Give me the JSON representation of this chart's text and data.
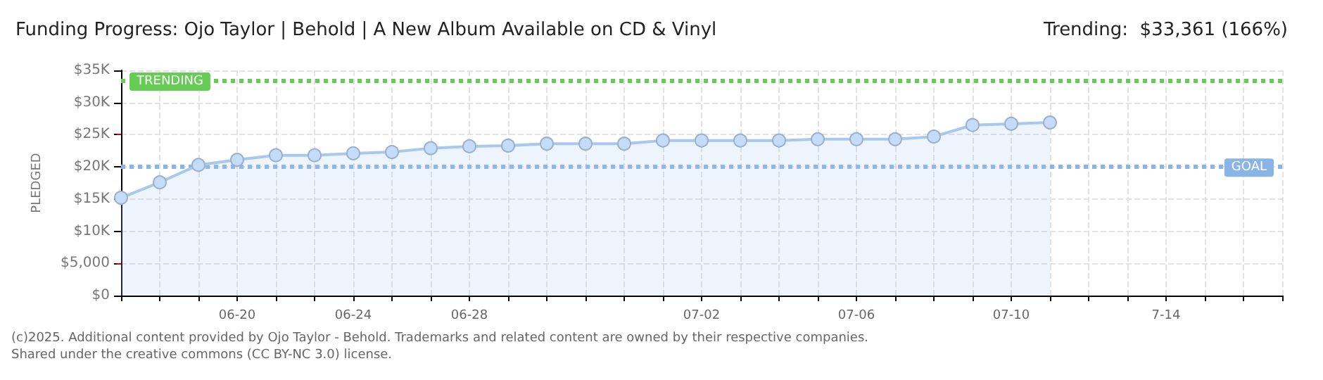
{
  "chart_data": {
    "type": "area",
    "title": "Funding Progress: Ojo Taylor | Behold | A New Album Available on CD & Vinyl",
    "subtitle": "Trending:  $33,361 (166%)",
    "ylabel": "PLEDGED",
    "categories": [
      null,
      null,
      null,
      "06-20",
      null,
      null,
      "06-24",
      null,
      null,
      "06-28",
      null,
      null,
      null,
      null,
      null,
      "07-02",
      null,
      null,
      null,
      "07-06",
      null,
      null,
      null,
      "07-10",
      null,
      null,
      null,
      "7-14",
      null,
      null,
      null
    ],
    "series": [
      {
        "color": "#a8c8ee",
        "values": [
          15200,
          17600,
          20300,
          21100,
          21800,
          21800,
          22100,
          22300,
          22900,
          23200,
          23300,
          23600,
          23600,
          23600,
          24100,
          24100,
          24100,
          24100,
          24300,
          24300,
          24300,
          24700,
          26500,
          26700,
          26900,
          null,
          null,
          null,
          null,
          null,
          null
        ]
      }
    ],
    "ylim": [
      0,
      35000
    ],
    "yticks": [
      {
        "value": 0,
        "label": "$0"
      },
      {
        "value": 5000,
        "label": "$5,000"
      },
      {
        "value": 10000,
        "label": "$10K"
      },
      {
        "value": 15000,
        "label": "$15K"
      },
      {
        "value": 20000,
        "label": "$20K"
      },
      {
        "value": 25000,
        "label": "$25K"
      },
      {
        "value": 30000,
        "label": "$30K"
      },
      {
        "value": 35000,
        "label": "$35K"
      }
    ],
    "ref_lines": [
      {
        "axis": "y",
        "value": 33361,
        "label": "TRENDING",
        "color": "#66cc55",
        "line_style": "dotted"
      },
      {
        "axis": "y",
        "value": 20000,
        "label": "GOAL",
        "color": "#88b4e6",
        "line_style": "dotted"
      }
    ],
    "grid": true,
    "marker": "circle",
    "line_style": "solid",
    "annotations": [
      "(c)2025. Additional content provided by Ojo Taylor - Behold. Trademarks and related content are owned by their respective companies.",
      "Shared under the creative commons (CC BY-NC 3.0) license."
    ]
  }
}
